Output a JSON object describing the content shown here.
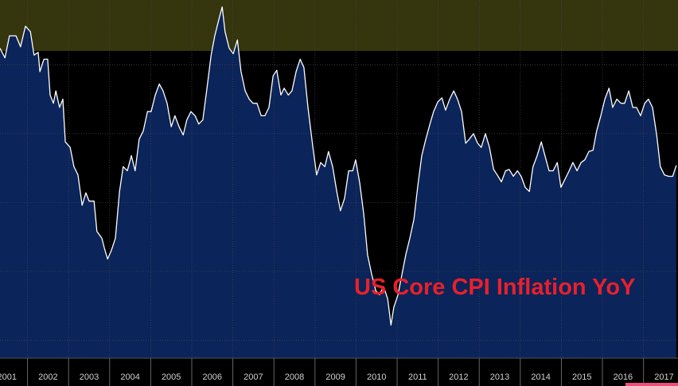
{
  "chart_data": {
    "type": "area",
    "annotation": "US Core CPI Inflation YoY",
    "xlim": [
      2001.33,
      2017.84
    ],
    "ylim": [
      0.37,
      2.97
    ],
    "ygrid": [
      0.5,
      1,
      1.5,
      2,
      2.5
    ],
    "xgrid": [
      2002,
      2003,
      2004,
      2005,
      2006,
      2007,
      2008,
      2009,
      2010,
      2011,
      2012,
      2013,
      2014,
      2015,
      2016,
      2017
    ],
    "xticks": [
      {
        "value": 2001.5,
        "label": "2001"
      },
      {
        "value": 2002.5,
        "label": "2002"
      },
      {
        "value": 2003.5,
        "label": "2003"
      },
      {
        "value": 2004.5,
        "label": "2004"
      },
      {
        "value": 2005.5,
        "label": "2005"
      },
      {
        "value": 2006.5,
        "label": "2006"
      },
      {
        "value": 2007.5,
        "label": "2007"
      },
      {
        "value": 2008.5,
        "label": "2008"
      },
      {
        "value": 2009.5,
        "label": "2009"
      },
      {
        "value": 2010.5,
        "label": "2010"
      },
      {
        "value": 2011.5,
        "label": "2011"
      },
      {
        "value": 2012.5,
        "label": "2012"
      },
      {
        "value": 2013.5,
        "label": "2013"
      },
      {
        "value": 2014.5,
        "label": "2014"
      },
      {
        "value": 2015.5,
        "label": "2015"
      },
      {
        "value": 2016.5,
        "label": "2016"
      },
      {
        "value": 2017.5,
        "label": "2017"
      }
    ],
    "band": [
      2.6,
      2.97
    ],
    "band_color": "#35350e",
    "color": "#ffffff",
    "fill": "#0b2459",
    "grid": true,
    "x": [
      2001.33,
      2001.45,
      2001.56,
      2001.72,
      2001.83,
      2001.95,
      2002.07,
      2002.16,
      2002.26,
      2002.3,
      2002.4,
      2002.49,
      2002.55,
      2002.63,
      2002.69,
      2002.78,
      2002.86,
      2002.92,
      2003.04,
      2003.13,
      2003.23,
      2003.33,
      2003.42,
      2003.5,
      2003.62,
      2003.69,
      2003.81,
      2003.87,
      2003.95,
      2004.04,
      2004.14,
      2004.24,
      2004.33,
      2004.43,
      2004.53,
      2004.62,
      2004.72,
      2004.82,
      2004.92,
      2005.01,
      2005.11,
      2005.21,
      2005.3,
      2005.4,
      2005.5,
      2005.59,
      2005.69,
      2005.79,
      2005.88,
      2005.98,
      2006.08,
      2006.17,
      2006.27,
      2006.37,
      2006.47,
      2006.56,
      2006.66,
      2006.74,
      2006.81,
      2006.91,
      2007.01,
      2007.11,
      2007.2,
      2007.3,
      2007.4,
      2007.49,
      2007.59,
      2007.69,
      2007.78,
      2007.88,
      2007.98,
      2008.07,
      2008.17,
      2008.25,
      2008.35,
      2008.44,
      2008.54,
      2008.64,
      2008.73,
      2008.83,
      2008.95,
      2009.04,
      2009.14,
      2009.24,
      2009.33,
      2009.43,
      2009.53,
      2009.62,
      2009.72,
      2009.82,
      2009.92,
      2009.99,
      2010.09,
      2010.19,
      2010.28,
      2010.38,
      2010.48,
      2010.57,
      2010.67,
      2010.77,
      2010.85,
      2010.92,
      2011.02,
      2011.12,
      2011.21,
      2011.31,
      2011.41,
      2011.5,
      2011.6,
      2011.7,
      2011.8,
      2011.89,
      2011.99,
      2012.09,
      2012.18,
      2012.28,
      2012.38,
      2012.47,
      2012.57,
      2012.67,
      2012.76,
      2012.86,
      2012.96,
      2013.05,
      2013.15,
      2013.25,
      2013.35,
      2013.44,
      2013.54,
      2013.64,
      2013.73,
      2013.83,
      2013.93,
      2014.02,
      2014.12,
      2014.22,
      2014.31,
      2014.41,
      2014.51,
      2014.6,
      2014.7,
      2014.8,
      2014.9,
      2014.99,
      2015.09,
      2015.19,
      2015.28,
      2015.38,
      2015.48,
      2015.57,
      2015.67,
      2015.77,
      2015.86,
      2015.96,
      2016.06,
      2016.16,
      2016.25,
      2016.35,
      2016.45,
      2016.54,
      2016.64,
      2016.74,
      2016.83,
      2016.93,
      2017.03,
      2017.12,
      2017.22,
      2017.32,
      2017.41,
      2017.51,
      2017.61,
      2017.71,
      2017.8
    ],
    "values": [
      2.62,
      2.55,
      2.71,
      2.71,
      2.63,
      2.78,
      2.74,
      2.57,
      2.59,
      2.45,
      2.54,
      2.54,
      2.28,
      2.22,
      2.31,
      2.19,
      2.25,
      1.94,
      1.9,
      1.76,
      1.7,
      1.48,
      1.57,
      1.51,
      1.51,
      1.29,
      1.24,
      1.17,
      1.09,
      1.15,
      1.24,
      1.58,
      1.76,
      1.73,
      1.84,
      1.73,
      1.96,
      2.02,
      2.16,
      2.16,
      2.28,
      2.36,
      2.31,
      2.22,
      2.05,
      2.13,
      2.05,
      1.99,
      2.1,
      2.16,
      2.13,
      2.07,
      2.1,
      2.33,
      2.57,
      2.71,
      2.83,
      2.92,
      2.74,
      2.62,
      2.58,
      2.68,
      2.45,
      2.31,
      2.25,
      2.22,
      2.22,
      2.13,
      2.13,
      2.19,
      2.42,
      2.46,
      2.28,
      2.33,
      2.28,
      2.31,
      2.45,
      2.54,
      2.48,
      2.19,
      1.9,
      1.7,
      1.79,
      1.76,
      1.87,
      1.76,
      1.58,
      1.44,
      1.53,
      1.73,
      1.73,
      1.81,
      1.64,
      1.41,
      1.12,
      0.98,
      0.86,
      0.83,
      0.89,
      0.8,
      0.61,
      0.74,
      0.83,
      0.98,
      1.12,
      1.24,
      1.38,
      1.61,
      1.84,
      1.96,
      2.07,
      2.16,
      2.23,
      2.26,
      2.17,
      2.25,
      2.31,
      2.25,
      2.16,
      1.93,
      1.96,
      2.0,
      1.93,
      1.9,
      2.0,
      1.9,
      1.74,
      1.7,
      1.65,
      1.73,
      1.74,
      1.69,
      1.73,
      1.69,
      1.61,
      1.58,
      1.76,
      1.84,
      1.94,
      1.84,
      1.73,
      1.73,
      1.79,
      1.61,
      1.67,
      1.73,
      1.79,
      1.73,
      1.79,
      1.81,
      1.87,
      1.88,
      2.02,
      2.13,
      2.25,
      2.33,
      2.19,
      2.25,
      2.22,
      2.22,
      2.31,
      2.19,
      2.19,
      2.13,
      2.22,
      2.25,
      2.19,
      1.99,
      1.76,
      1.7,
      1.69,
      1.69,
      1.77
    ]
  }
}
